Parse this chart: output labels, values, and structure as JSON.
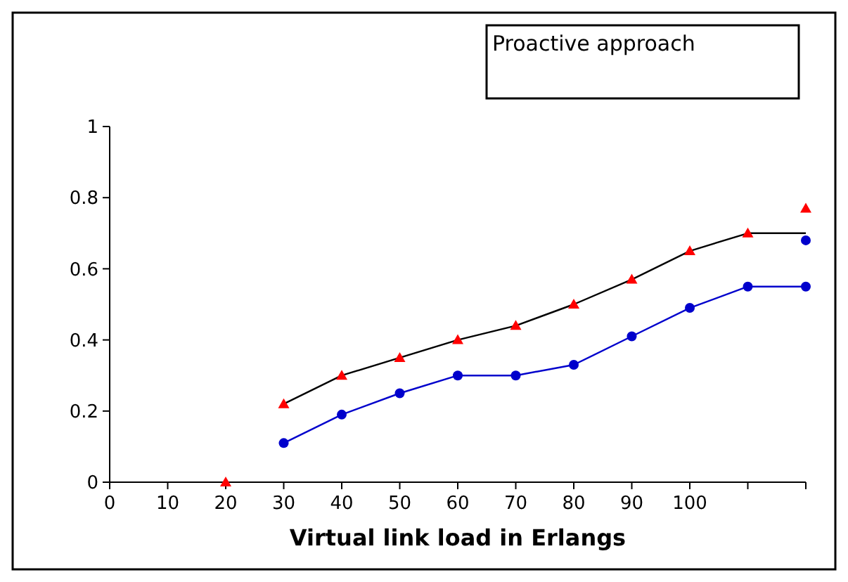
{
  "chart_data": {
    "type": "line",
    "xlabel": "Virtual link load in Erlangs",
    "annotations": [
      "Proactive approach"
    ],
    "xlim": [
      0,
      120
    ],
    "xticks": [
      0,
      10,
      20,
      30,
      40,
      50,
      60,
      70,
      80,
      90,
      100,
      {
        "value": 110,
        "label": null
      },
      {
        "value": 120,
        "label": null
      }
    ],
    "ylim": [
      0,
      1
    ],
    "yticks": [
      0,
      0.2,
      0.4,
      0.6,
      0.8,
      1
    ],
    "grid": false,
    "series": [
      {
        "type": "line",
        "color": "#000000",
        "marker": "none",
        "x": [
          30,
          40,
          50,
          60,
          70,
          80,
          90,
          100,
          110,
          120
        ],
        "values": [
          0.22,
          0.3,
          0.35,
          0.4,
          0.44,
          0.5,
          0.57,
          0.65,
          0.7,
          0.7
        ]
      },
      {
        "type": "scatter",
        "color": "#ff0000",
        "marker": "triangle",
        "x": [
          20,
          30,
          40,
          50,
          60,
          70,
          80,
          90,
          100,
          110,
          120
        ],
        "values": [
          0,
          0.22,
          0.3,
          0.35,
          0.4,
          0.44,
          0.5,
          0.57,
          0.65,
          0.7,
          0.77
        ]
      },
      {
        "type": "line",
        "color": "#0000cc",
        "marker": "circle",
        "x": [
          30,
          40,
          50,
          60,
          70,
          80,
          90,
          100,
          110,
          120
        ],
        "values": [
          0.11,
          0.19,
          0.25,
          0.3,
          0.3,
          0.33,
          0.41,
          0.49,
          0.55,
          0.55
        ]
      },
      {
        "type": "scatter",
        "color": "#0000cc",
        "marker": "circle",
        "x": [
          120
        ],
        "values": [
          0.68
        ]
      }
    ]
  }
}
